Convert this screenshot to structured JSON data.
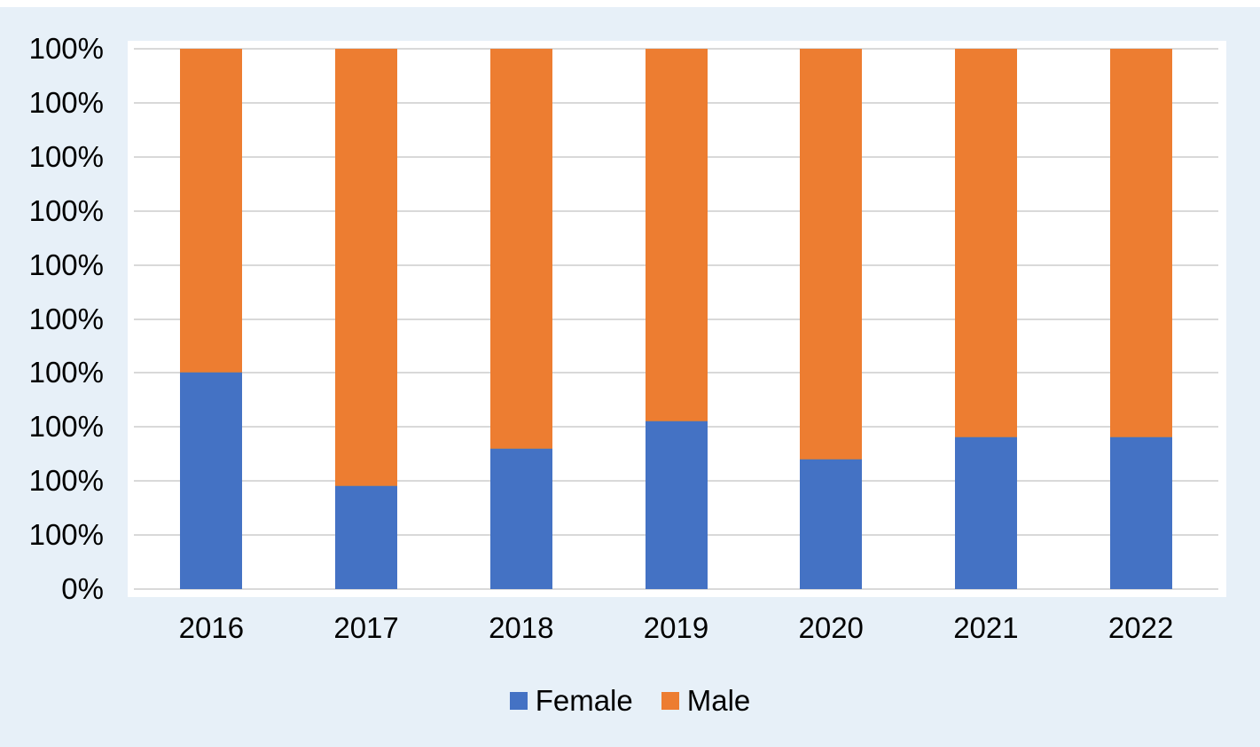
{
  "chart_data": {
    "type": "bar",
    "subtype": "stacked-100-percent",
    "title": "",
    "categories": [
      "2016",
      "2017",
      "2018",
      "2019",
      "2020",
      "2021",
      "2022"
    ],
    "series": [
      {
        "name": "Female",
        "color": "#4472C4",
        "values": [
          40,
          19,
          26,
          31,
          24,
          28,
          28
        ]
      },
      {
        "name": "Male",
        "color": "#ED7D31",
        "values": [
          60,
          81,
          74,
          69,
          76,
          72,
          72
        ]
      }
    ],
    "units": "percent",
    "ylim": [
      0,
      100
    ],
    "y_axis": {
      "tick_labels_top_to_bottom": [
        "100%",
        "100%",
        "100%",
        "100%",
        "100%",
        "100%",
        "100%",
        "100%",
        "100%",
        "100%",
        "0%"
      ]
    },
    "x_axis": {
      "label": ""
    },
    "legend": {
      "position": "bottom",
      "entries": [
        "Female",
        "Male"
      ]
    },
    "grid": true,
    "colors": {
      "background": "#E7F0F8",
      "plot_background": "#FFFFFF",
      "gridline": "#D9D9D9",
      "text": "#000000"
    }
  }
}
